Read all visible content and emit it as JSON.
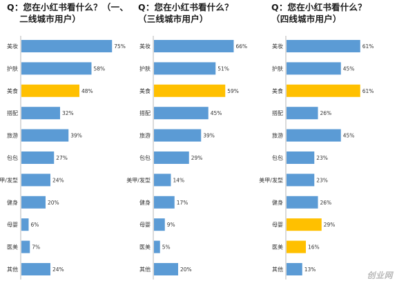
{
  "chart_data": [
    {
      "type": "bar",
      "orientation": "horizontal",
      "title": "Q：您在小红书看什么？（一、\n    二线城市用户）",
      "categories": [
        "美妆",
        "护肤",
        "美食",
        "搭配",
        "旅游",
        "包包",
        "美甲/发型",
        "健身",
        "母婴",
        "医美",
        "其他"
      ],
      "values": [
        75,
        58,
        48,
        32,
        39,
        27,
        24,
        20,
        6,
        7,
        24
      ],
      "value_labels": [
        "75%",
        "58%",
        "48%",
        "32%",
        "39%",
        "27%",
        "24%",
        "20%",
        "6%",
        "7%",
        "24%"
      ],
      "colors": [
        "#5b9bd5",
        "#5b9bd5",
        "#ffc000",
        "#5b9bd5",
        "#5b9bd5",
        "#5b9bd5",
        "#5b9bd5",
        "#5b9bd5",
        "#5b9bd5",
        "#5b9bd5",
        "#5b9bd5"
      ],
      "xlim": [
        0,
        80
      ]
    },
    {
      "type": "bar",
      "orientation": "horizontal",
      "title": "Q：您在小红书看什么？\n（三线城市用户）",
      "categories": [
        "美妆",
        "护肤",
        "美食",
        "搭配",
        "旅游",
        "包包",
        "美甲/发型",
        "健身",
        "母婴",
        "医美",
        "其他"
      ],
      "values": [
        66,
        51,
        59,
        45,
        39,
        29,
        14,
        17,
        9,
        5,
        20
      ],
      "value_labels": [
        "66%",
        "51%",
        "59%",
        "45%",
        "39%",
        "29%",
        "14%",
        "17%",
        "9%",
        "5%",
        "20%"
      ],
      "colors": [
        "#5b9bd5",
        "#5b9bd5",
        "#ffc000",
        "#5b9bd5",
        "#5b9bd5",
        "#5b9bd5",
        "#5b9bd5",
        "#5b9bd5",
        "#5b9bd5",
        "#5b9bd5",
        "#5b9bd5"
      ],
      "xlim": [
        0,
        80
      ]
    },
    {
      "type": "bar",
      "orientation": "horizontal",
      "title": "Q：您在小红书看什么？\n（四线城市用户）",
      "categories": [
        "美妆",
        "护肤",
        "美食",
        "搭配",
        "旅游",
        "包包",
        "美甲/发型",
        "健身",
        "母婴",
        "医美",
        "其他"
      ],
      "values": [
        61,
        45,
        61,
        26,
        45,
        23,
        23,
        26,
        29,
        16,
        13
      ],
      "value_labels": [
        "61%",
        "45%",
        "61%",
        "26%",
        "45%",
        "23%",
        "23%",
        "26%",
        "29%",
        "16%",
        "13%"
      ],
      "colors": [
        "#5b9bd5",
        "#5b9bd5",
        "#ffc000",
        "#5b9bd5",
        "#5b9bd5",
        "#5b9bd5",
        "#5b9bd5",
        "#5b9bd5",
        "#ffc000",
        "#ffc000",
        "#5b9bd5"
      ],
      "xlim": [
        0,
        80
      ]
    }
  ],
  "watermark": "创业网"
}
